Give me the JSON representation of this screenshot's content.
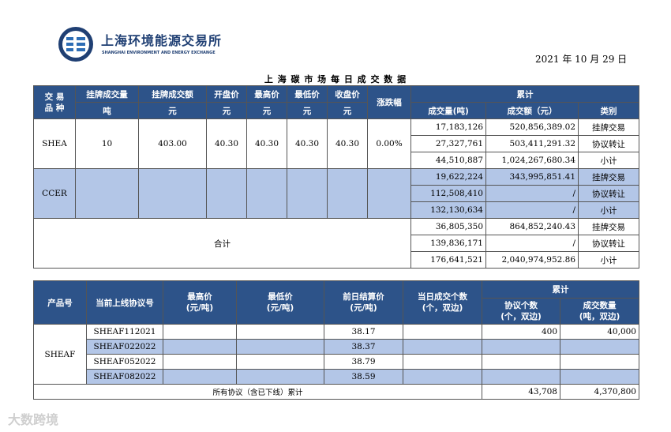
{
  "header": {
    "org_cn": "上海环境能源交易所",
    "org_en": "SHANGHAI ENVIRONMENT AND ENERGY EXCHANGE",
    "date": "2021 年 10 月 29 日",
    "title": "上 海 碳 市 场 每 日 成 交 数 据"
  },
  "table1": {
    "headers": {
      "product": "交 易\n品 种",
      "listed_volume": "挂牌成交量",
      "listed_volume_unit": "吨",
      "listed_amount": "挂牌成交额",
      "listed_amount_unit": "元",
      "open": "开盘价",
      "open_unit": "元",
      "high": "最高价",
      "high_unit": "元",
      "low": "最低价",
      "low_unit": "元",
      "close": "收盘价",
      "close_unit": "元",
      "change": "涨跌幅",
      "cumulative": "累计",
      "cum_volume": "成交量(吨)",
      "cum_amount": "成交额（元）",
      "cum_type": "类别"
    },
    "shea": {
      "name": "SHEA",
      "listed_volume": "10",
      "listed_amount": "403.00",
      "open": "40.30",
      "high": "40.30",
      "low": "40.30",
      "close": "40.30",
      "change": "0.00%",
      "rows": [
        {
          "volume": "17,183,126",
          "amount": "520,856,389.02",
          "type": "挂牌交易"
        },
        {
          "volume": "27,327,761",
          "amount": "503,411,291.32",
          "type": "协议转让"
        },
        {
          "volume": "44,510,887",
          "amount": "1,024,267,680.34",
          "type": "小计"
        }
      ]
    },
    "ccer": {
      "name": "CCER",
      "rows": [
        {
          "volume": "19,622,224",
          "amount": "343,995,851.41",
          "type": "挂牌交易"
        },
        {
          "volume": "112,508,410",
          "amount": "/",
          "type": "协议转让"
        },
        {
          "volume": "132,130,634",
          "amount": "/",
          "type": "小计"
        }
      ]
    },
    "total": {
      "label": "合计",
      "rows": [
        {
          "volume": "36,805,350",
          "amount": "864,852,240.43",
          "type": "挂牌交易"
        },
        {
          "volume": "139,836,171",
          "amount": "/",
          "type": "协议转让"
        },
        {
          "volume": "176,641,521",
          "amount": "2,040,974,952.86",
          "type": "小计"
        }
      ]
    }
  },
  "table2": {
    "headers": {
      "product_no": "产品号",
      "current_contract": "当前上线协议号",
      "high": "最高价\n(元/吨)",
      "low": "最低价\n(元/吨)",
      "prev_settle": "前日结算价\n(元/吨)",
      "today_count": "当日成交个数\n(个，双边)",
      "cumulative": "累计",
      "agreement_count": "协议个数\n(个，双边)",
      "deal_qty": "成交数量\n(吨，双边)"
    },
    "product": "SHEAF",
    "rows": [
      {
        "contract": "SHEAF112021",
        "high": "",
        "low": "",
        "settle": "38.17",
        "today": "",
        "agreements": "400",
        "qty": "40,000"
      },
      {
        "contract": "SHEAF022022",
        "high": "",
        "low": "",
        "settle": "38.37",
        "today": "",
        "agreements": "",
        "qty": ""
      },
      {
        "contract": "SHEAF052022",
        "high": "",
        "low": "",
        "settle": "38.79",
        "today": "",
        "agreements": "",
        "qty": ""
      },
      {
        "contract": "SHEAF082022",
        "high": "",
        "low": "",
        "settle": "38.59",
        "today": "",
        "agreements": "",
        "qty": ""
      }
    ],
    "total_label": "所有协议（含已下线）累计",
    "total_agreements": "43,708",
    "total_qty": "4,370,800"
  },
  "watermark": "大数跨境"
}
